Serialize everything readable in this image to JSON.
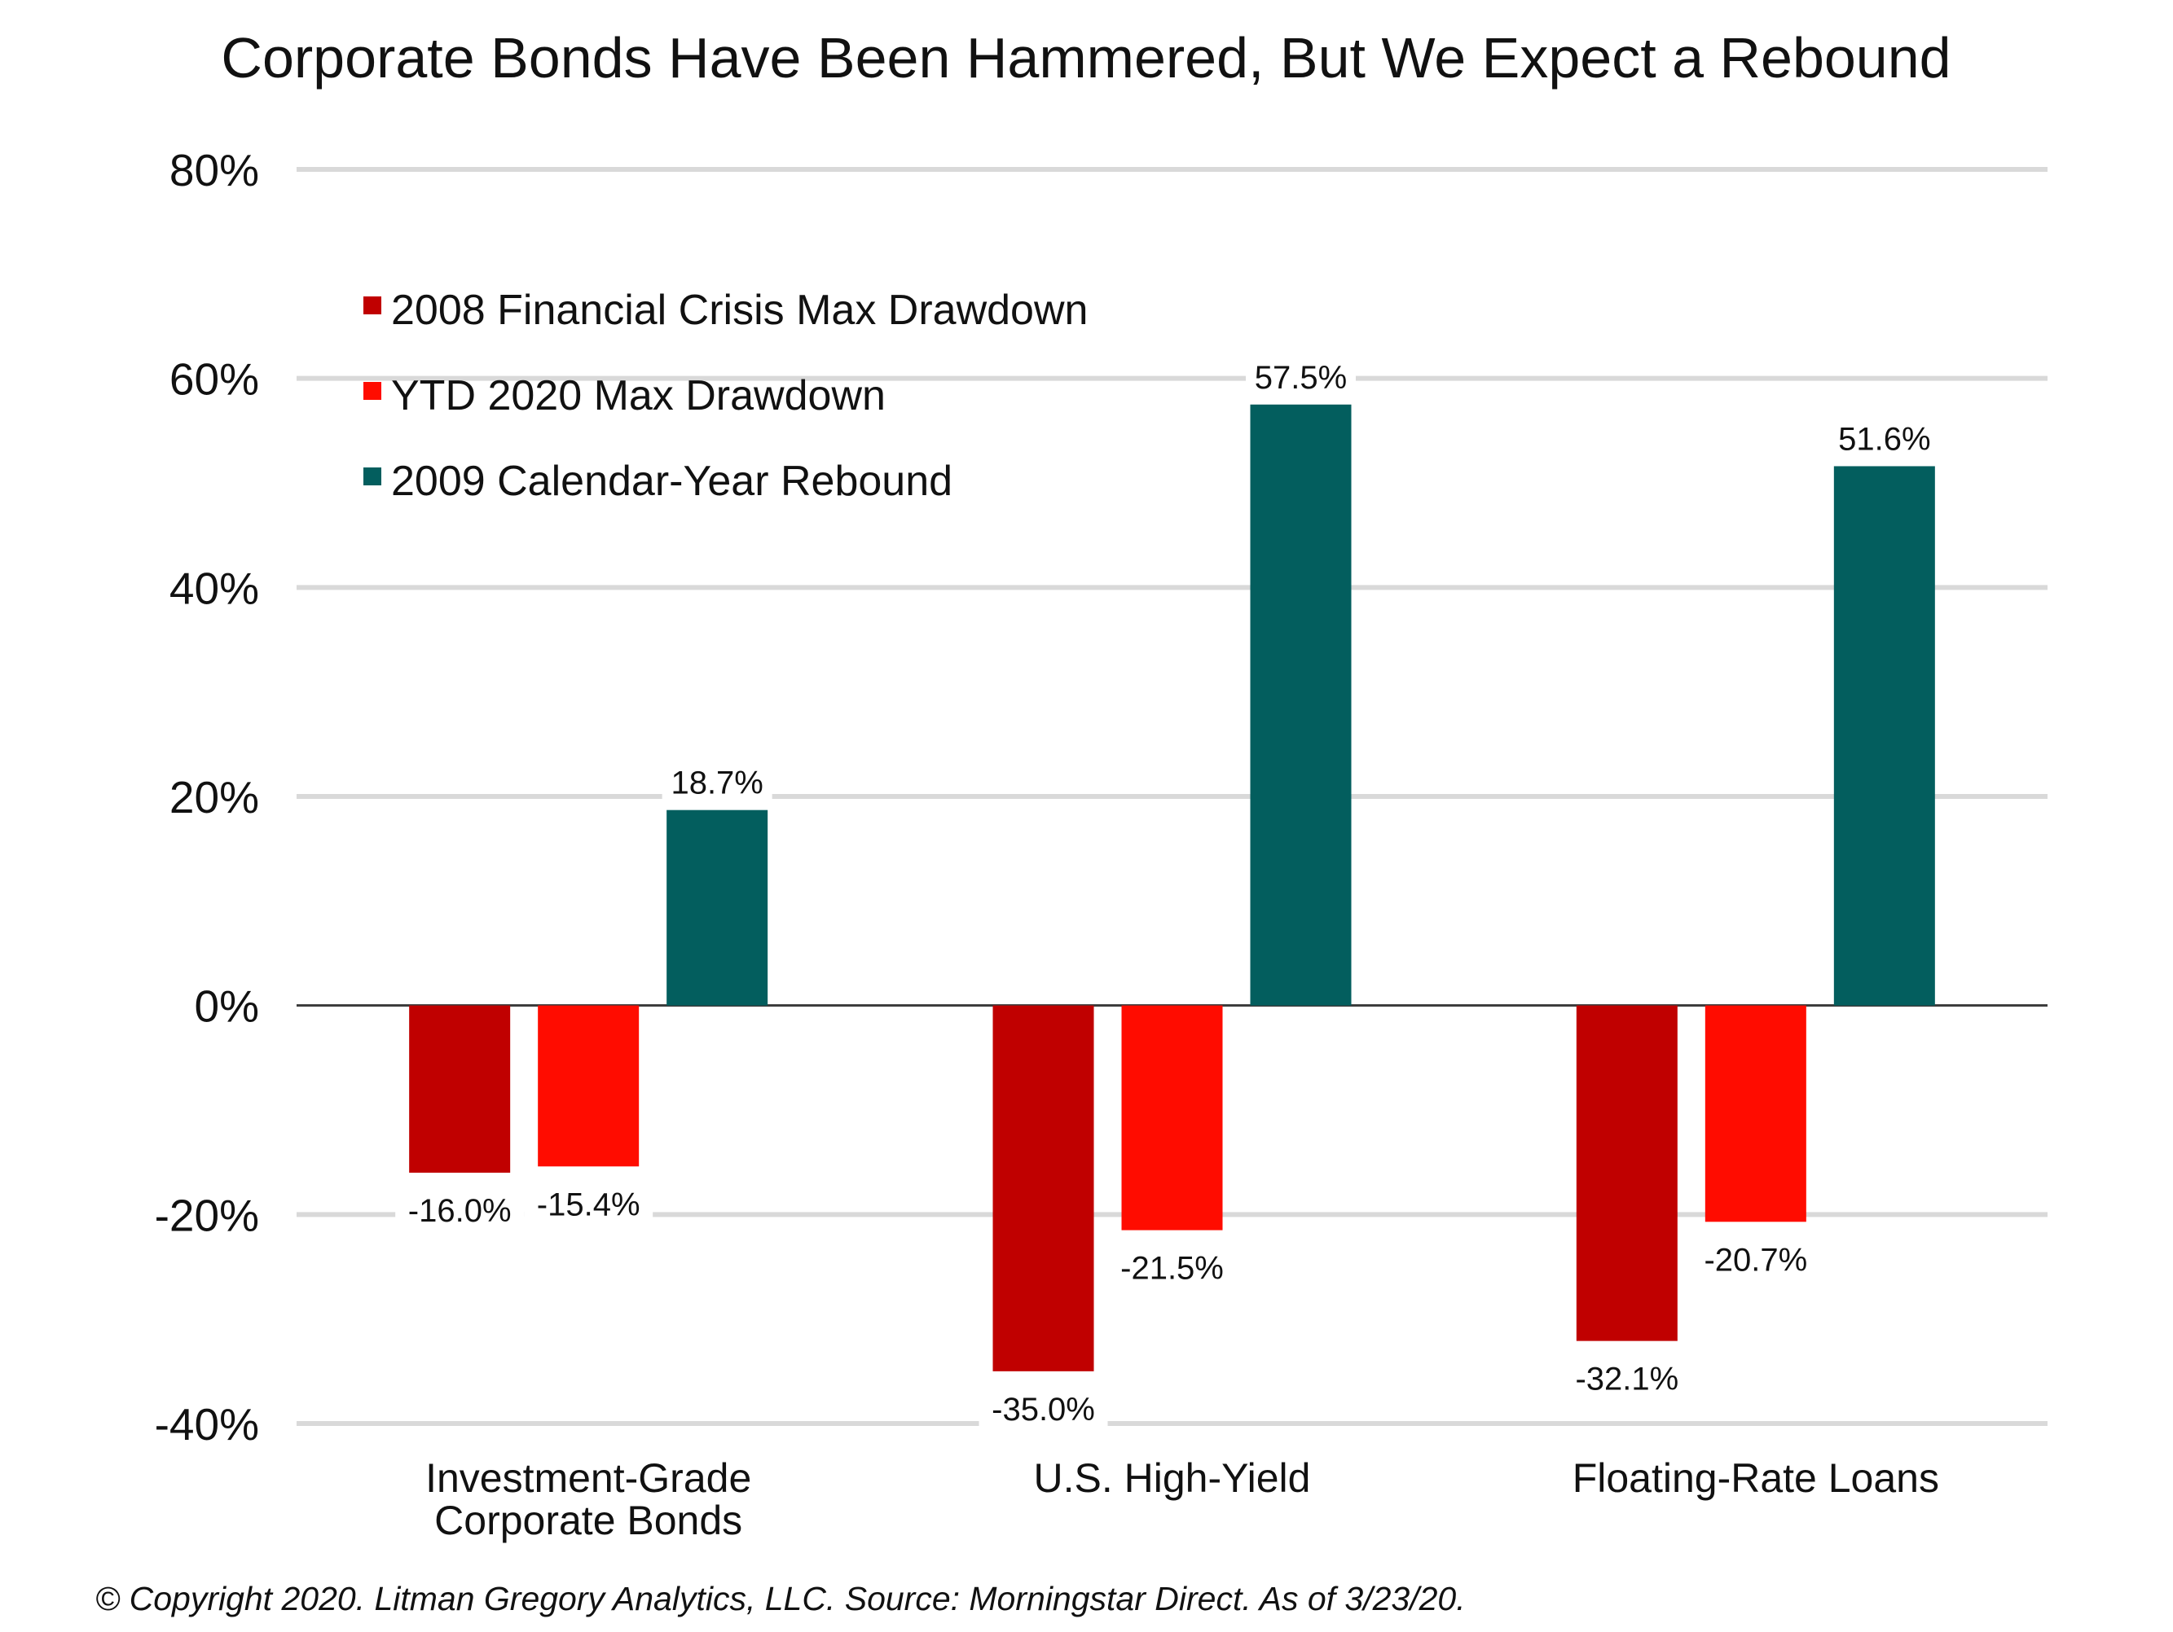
{
  "chart_data": {
    "type": "bar",
    "title": "Corporate Bonds Have Been Hammered, But We Expect a Rebound",
    "categories": [
      [
        "Investment-Grade",
        "Corporate Bonds"
      ],
      [
        "U.S. High-Yield"
      ],
      [
        "Floating-Rate Loans"
      ]
    ],
    "series": [
      {
        "name": "2008 Financial Crisis Max Drawdown",
        "color": "#c00000",
        "values": [
          -16.0,
          -35.0,
          -32.1
        ],
        "labels": [
          "-16.0%",
          "-35.0%",
          "-32.1%"
        ]
      },
      {
        "name": "YTD 2020 Max Drawdown",
        "color": "#ff0c00",
        "values": [
          -15.4,
          -21.5,
          -20.7
        ],
        "labels": [
          "-15.4%",
          "-21.5%",
          "-20.7%"
        ]
      },
      {
        "name": "2009 Calendar-Year Rebound",
        "color": "#035e5e",
        "values": [
          18.7,
          57.5,
          51.6
        ],
        "labels": [
          "18.7%",
          "57.5%",
          "51.6%"
        ]
      }
    ],
    "ylim": [
      -40,
      80
    ],
    "yticks": [
      80,
      60,
      40,
      20,
      0,
      -20,
      -40
    ],
    "ytick_labels": [
      "80%",
      "60%",
      "40%",
      "20%",
      "0%",
      "-20%",
      "-40%"
    ],
    "grid": true,
    "legend": "top-left",
    "footnote": "© Copyright 2020. Litman Gregory Analytics, LLC. Source: Morningstar Direct. As of 3/23/20."
  }
}
